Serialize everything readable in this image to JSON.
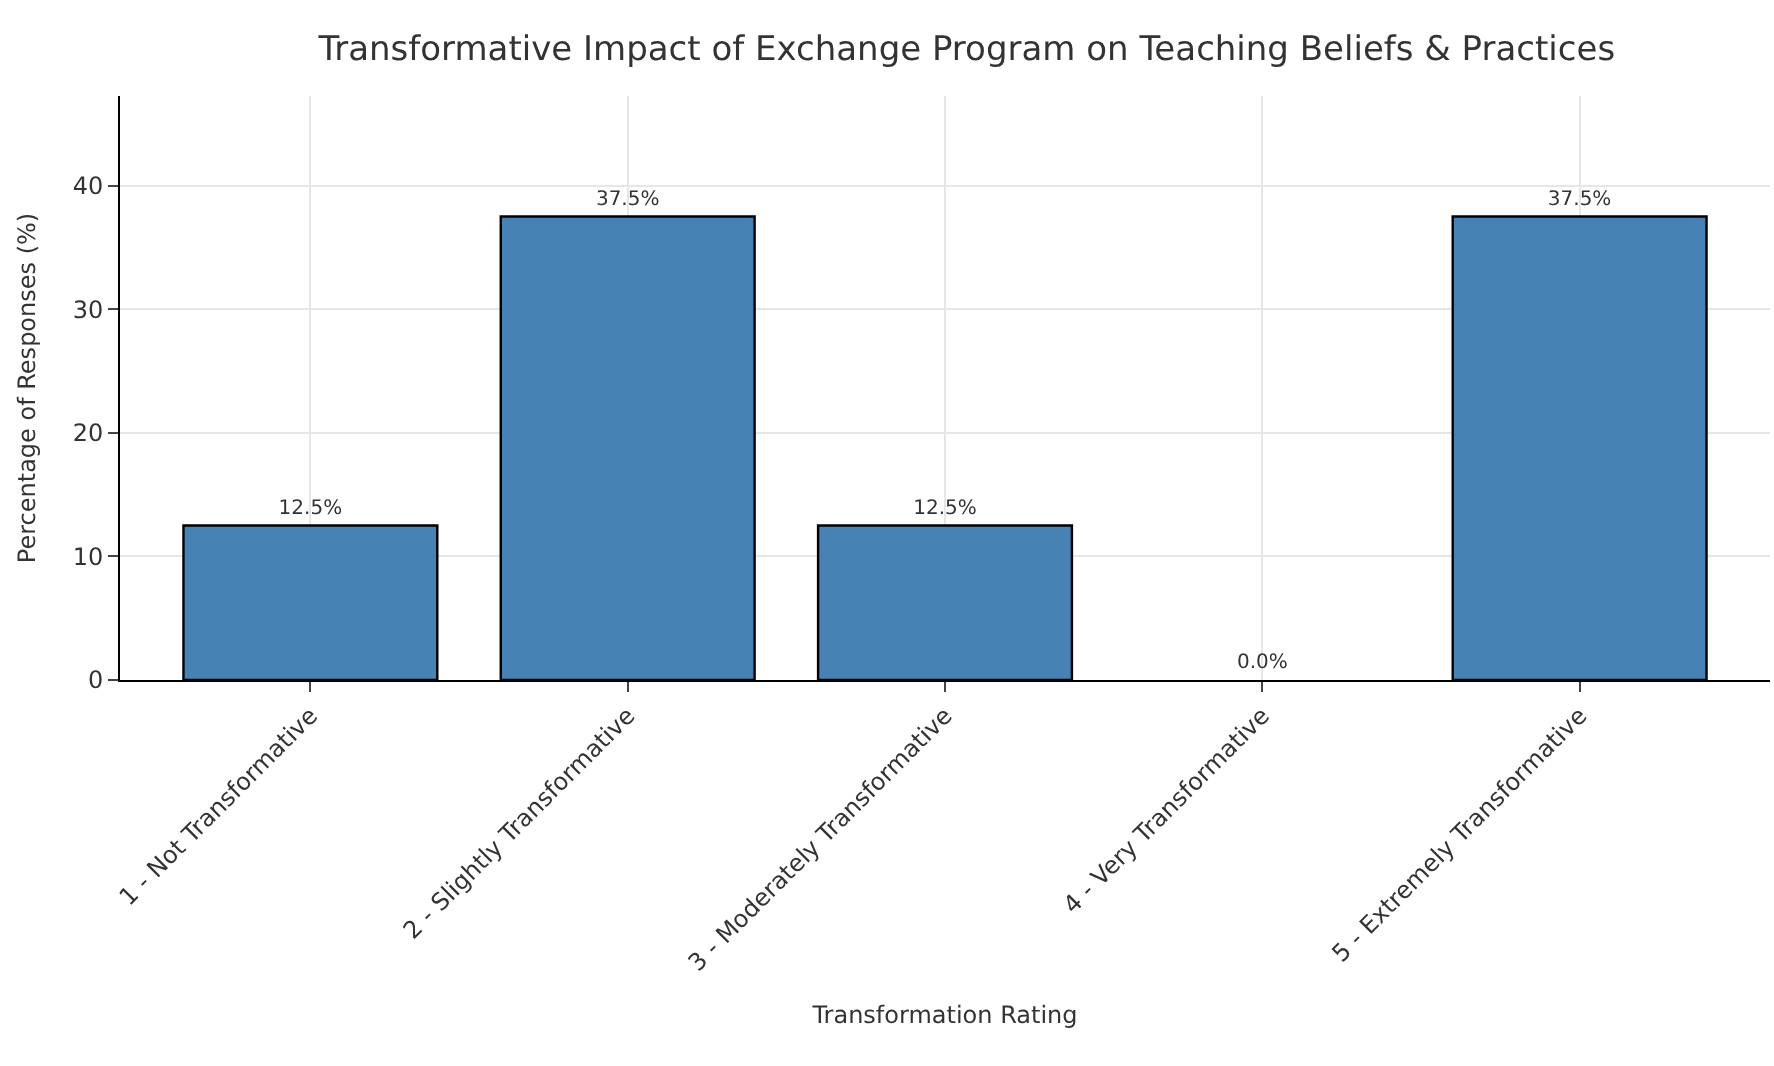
{
  "chart_data": {
    "type": "bar",
    "title": "Transformative Impact of Exchange Program on Teaching Beliefs & Practices",
    "xlabel": "Transformation Rating",
    "ylabel": "Percentage of Responses (%)",
    "categories": [
      "1 - Not Transformative",
      "2 - Slightly Transformative",
      "3 - Moderately Transformative",
      "4 - Very Transformative",
      "5 - Extremely Transformative"
    ],
    "values": [
      12.5,
      37.5,
      12.5,
      0.0,
      37.5
    ],
    "value_labels": [
      "12.5%",
      "37.5%",
      "12.5%",
      "0.0%",
      "37.5%"
    ],
    "color": "#4682b4",
    "ylim": [
      0,
      47.25
    ],
    "yticks": [
      0,
      10,
      20,
      30,
      40
    ],
    "grid": true
  }
}
